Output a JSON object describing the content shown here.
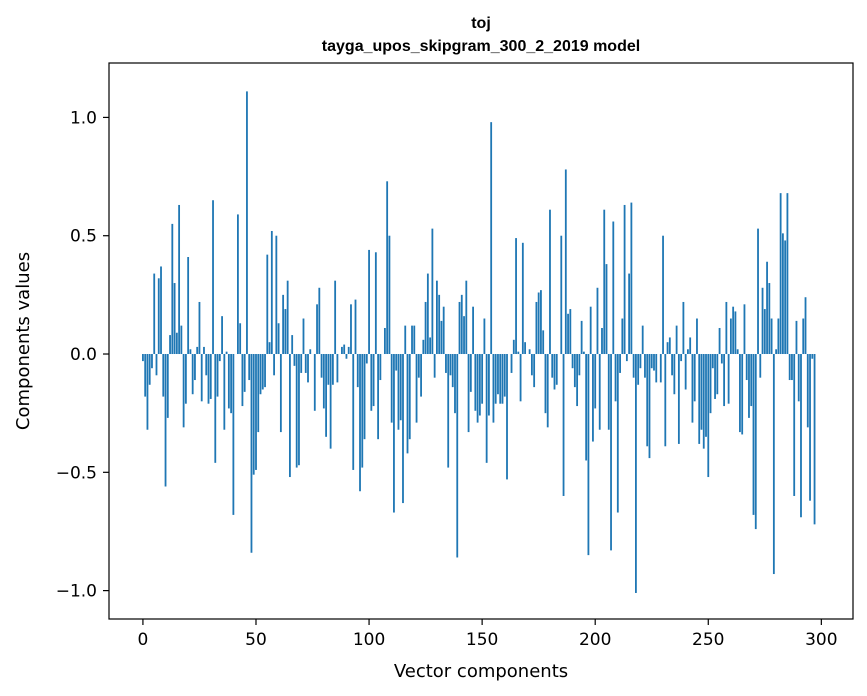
{
  "chart_data": {
    "type": "bar",
    "title": "toj",
    "subtitle": "tayga_upos_skipgram_300_2_2019 model",
    "xlabel": "Vector components",
    "ylabel": "Components values",
    "xlim": [
      -15,
      314
    ],
    "ylim": [
      -1.12,
      1.23
    ],
    "xticks": [
      0,
      50,
      100,
      150,
      200,
      250,
      300
    ],
    "xtick_labels": [
      "0",
      "50",
      "100",
      "150",
      "200",
      "250",
      "300"
    ],
    "yticks": [
      -1.0,
      -0.5,
      0.0,
      0.5,
      1.0
    ],
    "ytick_labels": [
      "−1.0",
      "−0.5",
      "0.0",
      "0.5",
      "1.0"
    ],
    "bar_color": "#1f77b4",
    "values": [
      -0.03,
      -0.18,
      -0.32,
      -0.13,
      -0.06,
      0.34,
      -0.09,
      0.32,
      0.37,
      -0.18,
      -0.56,
      -0.27,
      0.08,
      0.55,
      0.3,
      0.09,
      0.63,
      0.12,
      -0.31,
      -0.21,
      0.41,
      0.02,
      -0.17,
      -0.11,
      0.03,
      0.22,
      -0.2,
      0.03,
      -0.09,
      -0.21,
      -0.19,
      0.65,
      -0.46,
      -0.18,
      -0.03,
      0.16,
      -0.32,
      0.01,
      -0.23,
      -0.25,
      -0.68,
      0.0,
      0.59,
      0.13,
      -0.22,
      -0.16,
      1.11,
      -0.11,
      -0.84,
      -0.51,
      -0.49,
      -0.33,
      -0.17,
      -0.15,
      -0.14,
      0.42,
      0.05,
      0.52,
      -0.09,
      0.5,
      0.13,
      -0.33,
      0.25,
      0.19,
      0.31,
      -0.52,
      0.08,
      -0.05,
      -0.48,
      -0.47,
      -0.08,
      0.15,
      -0.08,
      -0.12,
      0.02,
      0.0,
      -0.24,
      0.21,
      0.28,
      -0.1,
      -0.23,
      -0.35,
      -0.13,
      -0.4,
      -0.13,
      0.31,
      -0.12,
      0.0,
      0.03,
      0.04,
      -0.02,
      0.03,
      0.21,
      -0.49,
      0.23,
      -0.14,
      -0.58,
      -0.48,
      -0.36,
      -0.04,
      0.44,
      -0.24,
      -0.22,
      0.43,
      -0.36,
      -0.11,
      0.0,
      0.11,
      0.73,
      0.5,
      -0.29,
      -0.67,
      -0.07,
      -0.32,
      -0.28,
      -0.63,
      0.12,
      -0.42,
      -0.36,
      0.12,
      0.12,
      -0.29,
      -0.1,
      -0.18,
      0.06,
      0.22,
      0.34,
      0.07,
      0.53,
      -0.1,
      0.31,
      0.25,
      0.14,
      0.2,
      -0.08,
      -0.48,
      -0.09,
      -0.14,
      -0.25,
      -0.86,
      0.22,
      0.25,
      0.16,
      0.31,
      -0.33,
      -0.16,
      0.2,
      -0.24,
      -0.29,
      -0.26,
      -0.21,
      0.15,
      -0.46,
      -0.26,
      0.98,
      -0.29,
      -0.21,
      -0.17,
      -0.21,
      -0.21,
      -0.18,
      -0.53,
      0.0,
      -0.08,
      0.06,
      0.49,
      0.01,
      -0.2,
      0.47,
      0.05,
      0.0,
      0.02,
      -0.09,
      -0.14,
      0.22,
      0.26,
      0.27,
      0.1,
      -0.25,
      -0.31,
      0.61,
      -0.1,
      -0.15,
      -0.13,
      0.0,
      0.5,
      -0.6,
      0.78,
      0.17,
      0.19,
      -0.06,
      -0.14,
      -0.22,
      -0.09,
      0.14,
      0.01,
      -0.45,
      -0.85,
      0.2,
      -0.37,
      -0.23,
      0.28,
      -0.32,
      0.11,
      0.61,
      0.38,
      -0.32,
      -0.83,
      0.56,
      -0.2,
      -0.67,
      -0.08,
      0.15,
      0.63,
      -0.03,
      0.34,
      0.64,
      -0.1,
      -1.01,
      -0.13,
      -0.06,
      0.12,
      -0.1,
      -0.39,
      -0.44,
      -0.06,
      -0.07,
      -0.12,
      0.0,
      -0.12,
      0.5,
      -0.39,
      0.05,
      0.07,
      -0.09,
      -0.17,
      0.12,
      -0.38,
      -0.03,
      0.22,
      -0.15,
      0.02,
      0.07,
      -0.29,
      -0.2,
      0.15,
      -0.38,
      -0.32,
      -0.4,
      -0.35,
      -0.52,
      -0.25,
      -0.06,
      -0.19,
      -0.17,
      0.11,
      -0.04,
      -0.22,
      0.22,
      -0.21,
      0.15,
      0.2,
      0.18,
      0.02,
      -0.33,
      -0.34,
      0.21,
      -0.11,
      -0.27,
      -0.22,
      -0.68,
      -0.74,
      0.53,
      -0.1,
      0.28,
      0.19,
      0.39,
      0.3,
      0.15,
      -0.93,
      0.02,
      0.15,
      0.68,
      0.51,
      0.48,
      0.68,
      -0.11,
      -0.11,
      -0.6,
      0.14,
      -0.2,
      -0.69,
      0.15,
      0.24,
      -0.31,
      -0.62,
      -0.02,
      -0.72
    ]
  }
}
